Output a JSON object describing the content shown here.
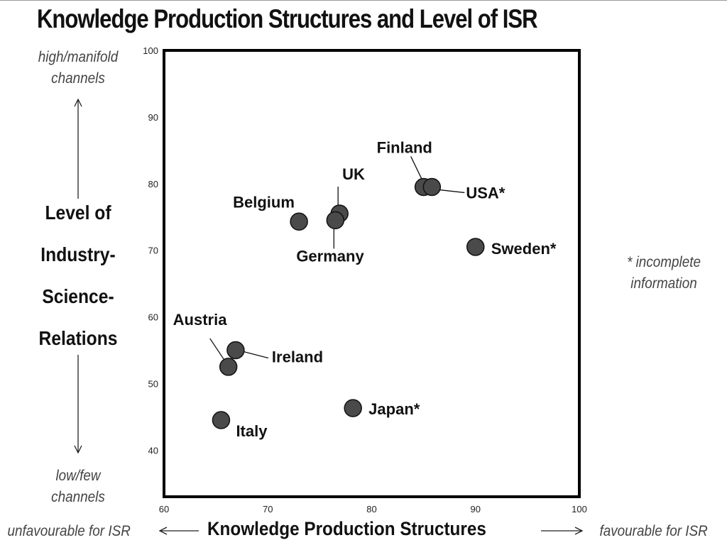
{
  "chart_data": {
    "type": "scatter",
    "title": "Knowledge Production Structures and Level of ISR",
    "xlabel": "Knowledge Production Structures",
    "ylabel_lines": [
      "Level of",
      "Industry-",
      "Science-",
      "Relations"
    ],
    "xlim": [
      60,
      100
    ],
    "ylim": [
      33,
      100
    ],
    "xticks": [
      60,
      70,
      80,
      90,
      100
    ],
    "yticks": [
      40,
      50,
      60,
      70,
      80,
      90,
      100
    ],
    "grid": false,
    "point_color": "#4a4a4a",
    "points": [
      {
        "label": "Finland",
        "x": 85,
        "y": 79.5
      },
      {
        "label": "USA*",
        "x": 85.8,
        "y": 79.5
      },
      {
        "label": "UK",
        "x": 76.9,
        "y": 75.5
      },
      {
        "label": "Germany",
        "x": 76.5,
        "y": 74.5
      },
      {
        "label": "Belgium",
        "x": 73,
        "y": 74.3
      },
      {
        "label": "Sweden*",
        "x": 90,
        "y": 70.5
      },
      {
        "label": "Ireland",
        "x": 66.9,
        "y": 55
      },
      {
        "label": "Austria",
        "x": 66.2,
        "y": 52.5
      },
      {
        "label": "Japan*",
        "x": 78.2,
        "y": 46.3
      },
      {
        "label": "Italy",
        "x": 65.5,
        "y": 44.5
      }
    ],
    "annotations": {
      "y_high": [
        "high/manifold",
        "channels"
      ],
      "y_low": [
        "low/few",
        "channels"
      ],
      "x_left": "unfavourable for ISR",
      "x_right": "favourable for ISR",
      "note": [
        "* incomplete",
        "information"
      ]
    }
  }
}
